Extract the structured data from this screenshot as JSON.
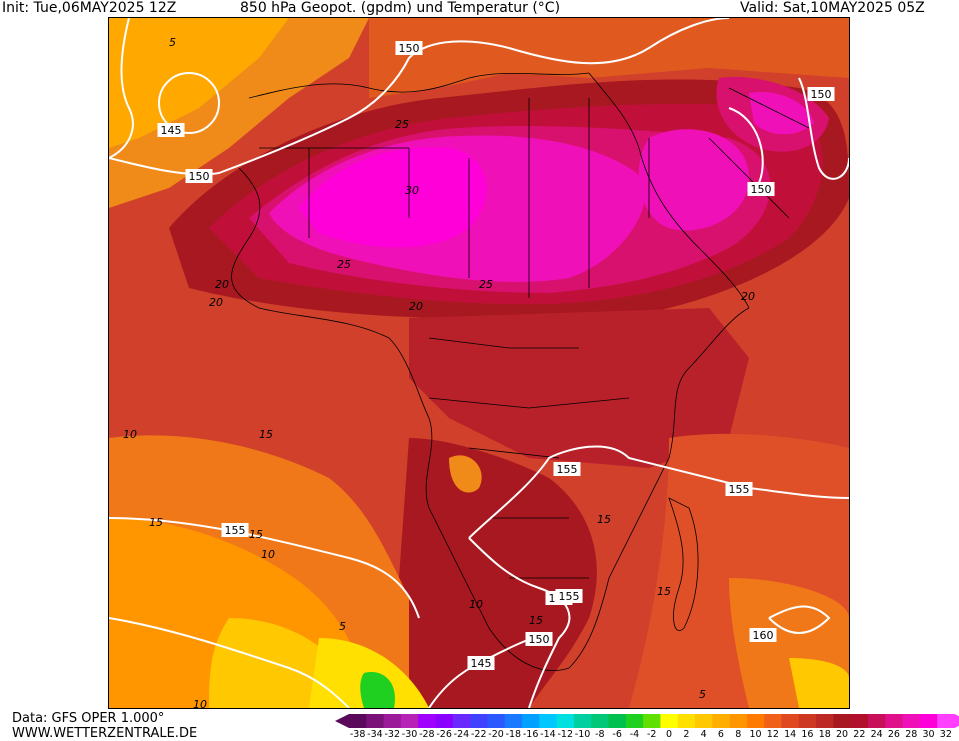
{
  "header": {
    "init": "Init: Tue,06MAY2025 12Z",
    "title": "850 hPa Geopot. (gpdm) und Temperatur (°C)",
    "valid": "Valid: Sat,10MAY2025 05Z"
  },
  "footer": {
    "data_source": "Data: GFS OPER 1.000°",
    "website": "WWW.WETTERZENTRALE.DE"
  },
  "geopotential_labels": [
    "145",
    "150",
    "150",
    "150",
    "150",
    "155",
    "155",
    "155",
    "155",
    "150",
    "145",
    "155",
    "160"
  ],
  "temperature_labels": [
    "5",
    "10",
    "15",
    "20",
    "25",
    "30",
    "20",
    "25",
    "20",
    "25",
    "20",
    "15",
    "15",
    "10",
    "15",
    "10",
    "5",
    "15",
    "5",
    "10",
    "15"
  ],
  "color_scale": {
    "ticks": [
      "-38",
      "-34",
      "-32",
      "-30",
      "-28",
      "-26",
      "-24",
      "-22",
      "-20",
      "-18",
      "-16",
      "-14",
      "-12",
      "-10",
      "-8",
      "-6",
      "-4",
      "-2",
      "0",
      "2",
      "4",
      "6",
      "8",
      "10",
      "12",
      "14",
      "16",
      "18",
      "20",
      "22",
      "24",
      "26",
      "28",
      "30",
      "32"
    ],
    "colors": [
      "#5a0a5a",
      "#7a127a",
      "#9a1a9a",
      "#b722b7",
      "#a000ff",
      "#8a00ff",
      "#6a2aff",
      "#4040ff",
      "#2a5aff",
      "#1a7aff",
      "#00a0ff",
      "#00c8ff",
      "#00e0e0",
      "#00d0a0",
      "#00c878",
      "#00c050",
      "#20d020",
      "#60e000",
      "#ffff00",
      "#ffe000",
      "#ffc800",
      "#ffae00",
      "#ff9600",
      "#ff7a00",
      "#f06018",
      "#e04820",
      "#cc3822",
      "#bd2a26",
      "#a81820",
      "#b0102c",
      "#c8105a",
      "#e0108a",
      "#f010b8",
      "#ff00d8",
      "#ff40ff"
    ]
  }
}
